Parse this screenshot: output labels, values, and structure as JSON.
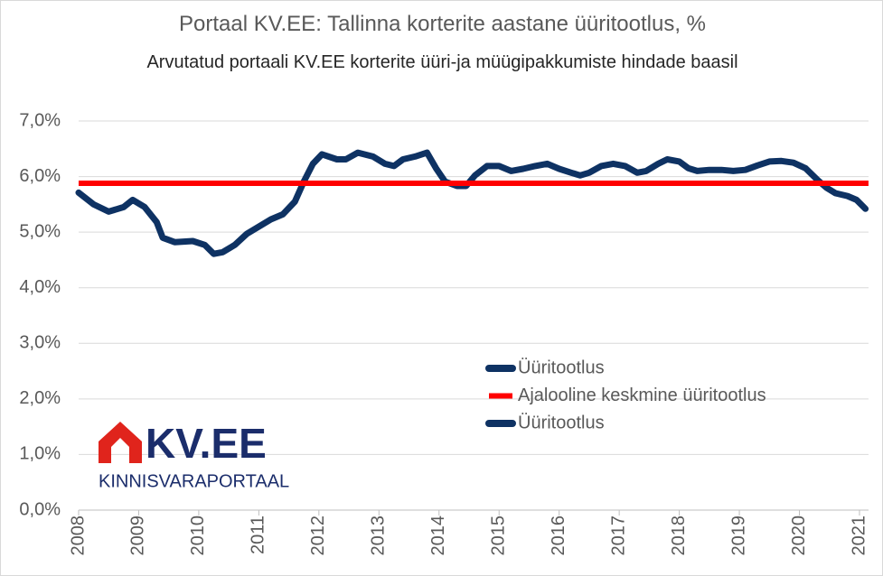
{
  "chart_data": {
    "type": "line",
    "title": "Portaal KV.EE: Tallinna korterite aastane üüritootlus, %",
    "subtitle": "Arvutatud portaali KV.EE korterite üüri-ja müügipakkumiste hindade baasil",
    "x": [
      2008.0,
      2008.25,
      2008.5,
      2008.75,
      2008.9,
      2009.1,
      2009.3,
      2009.4,
      2009.6,
      2009.9,
      2010.1,
      2010.25,
      2010.4,
      2010.6,
      2010.8,
      2011.0,
      2011.2,
      2011.4,
      2011.6,
      2011.75,
      2011.9,
      2012.05,
      2012.3,
      2012.45,
      2012.65,
      2012.9,
      2013.1,
      2013.25,
      2013.4,
      2013.6,
      2013.8,
      2013.95,
      2014.1,
      2014.3,
      2014.45,
      2014.6,
      2014.8,
      2015.0,
      2015.2,
      2015.4,
      2015.6,
      2015.8,
      2016.0,
      2016.2,
      2016.35,
      2016.5,
      2016.7,
      2016.9,
      2017.1,
      2017.3,
      2017.45,
      2017.65,
      2017.8,
      2018.0,
      2018.15,
      2018.3,
      2018.5,
      2018.7,
      2018.9,
      2019.1,
      2019.3,
      2019.5,
      2019.7,
      2019.9,
      2020.1,
      2020.3,
      2020.45,
      2020.6,
      2020.8,
      2020.95,
      2021.1
    ],
    "series": [
      {
        "name": "Üüritootlus",
        "color": "#0e3263",
        "values": [
          5.71,
          5.5,
          5.37,
          5.45,
          5.58,
          5.45,
          5.18,
          4.9,
          4.82,
          4.84,
          4.77,
          4.61,
          4.64,
          4.77,
          4.97,
          5.1,
          5.23,
          5.32,
          5.55,
          5.91,
          6.23,
          6.4,
          6.31,
          6.31,
          6.43,
          6.36,
          6.23,
          6.19,
          6.31,
          6.36,
          6.43,
          6.15,
          5.91,
          5.83,
          5.83,
          6.02,
          6.19,
          6.19,
          6.1,
          6.14,
          6.19,
          6.23,
          6.14,
          6.07,
          6.02,
          6.07,
          6.19,
          6.23,
          6.19,
          6.07,
          6.1,
          6.23,
          6.31,
          6.27,
          6.15,
          6.1,
          6.12,
          6.12,
          6.1,
          6.12,
          6.2,
          6.27,
          6.28,
          6.25,
          6.15,
          5.94,
          5.8,
          5.7,
          5.65,
          5.58,
          5.42
        ]
      },
      {
        "name": "Ajalooline keskmine üüritootlus",
        "color": "#ff0000",
        "value": 5.88
      },
      {
        "name": "Üüritootlus",
        "color": "#0e3263"
      }
    ],
    "xlim": [
      2008,
      2021.15
    ],
    "xticks": [
      2008,
      2009,
      2010,
      2011,
      2012,
      2013,
      2014,
      2015,
      2016,
      2017,
      2018,
      2019,
      2020,
      2021
    ],
    "ylim": [
      0,
      7
    ],
    "yticks": [
      {
        "value": 0,
        "label": "0,0%"
      },
      {
        "value": 1,
        "label": "1,0%"
      },
      {
        "value": 2,
        "label": "2,0%"
      },
      {
        "value": 3,
        "label": "3,0%"
      },
      {
        "value": 4,
        "label": "4,0%"
      },
      {
        "value": 5,
        "label": "5,0%"
      },
      {
        "value": 6,
        "label": "6,0%"
      },
      {
        "value": 7,
        "label": "7,0%"
      }
    ],
    "grid": true
  },
  "logo": {
    "name": "KV.EE",
    "tagline": "KINNISVARAPORTAAL"
  }
}
